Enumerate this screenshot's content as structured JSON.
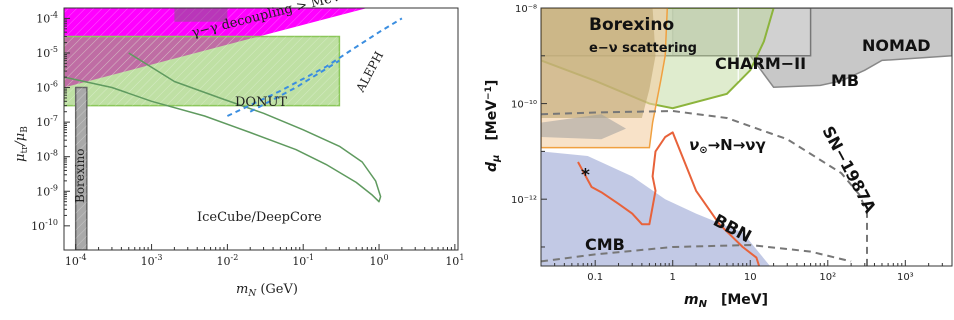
{
  "chart_data": [
    {
      "type": "area",
      "title": "",
      "xlabel": "m_N (GeV)",
      "ylabel": "μ_tr/μ_B",
      "x_scale": "log",
      "y_scale": "log",
      "xlim": [
        7e-05,
        11
      ],
      "ylim": [
        2e-11,
        0.0002
      ],
      "x_ticks": [
        "10^-4",
        "10^-3",
        "10^-2",
        "10^-1",
        "10^0",
        "10^1"
      ],
      "y_ticks": [
        "10^-10",
        "10^-9",
        "10^-8",
        "10^-7",
        "10^-6",
        "10^-5",
        "10^-4"
      ],
      "colors": {
        "decoupling": "#ff00ff",
        "donut": "#8bc75a",
        "borexino": "#a9a9a9",
        "icecube": "#5f9a5f",
        "aleph": "#3b8ee0"
      },
      "regions": [
        {
          "name": "γ–γ decoupling > MeV",
          "label_display": "γ−γ decoupling > MeV",
          "polygon": [
            [
              7e-05,
              0.0002
            ],
            [
              0.7,
              0.0002
            ],
            [
              7e-05,
              1e-06
            ]
          ]
        },
        {
          "name": "DONUT",
          "polygon": [
            [
              7e-05,
              3e-07
            ],
            [
              0.3,
              3e-07
            ],
            [
              0.3,
              3e-05
            ],
            [
              7e-05,
              3e-05
            ]
          ]
        },
        {
          "name": "Borexino",
          "polygon": [
            [
              0.0001,
              2e-11
            ],
            [
              0.00014,
              2e-11
            ],
            [
              0.00014,
              1e-06
            ],
            [
              0.0001,
              1e-06
            ]
          ]
        }
      ],
      "series": [
        {
          "name": "IceCube/DeepCore",
          "x": [
            7e-05,
            0.0003,
            0.001,
            0.005,
            0.02,
            0.08,
            0.2,
            0.5,
            0.8,
            1.0,
            1.05,
            0.9,
            0.6,
            0.3,
            0.1,
            0.03,
            0.008,
            0.002,
            0.0005
          ],
          "y": [
            2e-06,
            1e-06,
            4e-07,
            1.5e-07,
            5e-08,
            1.6e-08,
            6e-09,
            1.8e-09,
            8e-10,
            5e-10,
            7e-10,
            2e-09,
            7e-09,
            2e-08,
            6e-08,
            1.8e-07,
            5e-07,
            1.5e-06,
            1e-05
          ]
        },
        {
          "name": "ALEPH",
          "x": [
            0.01,
            0.05,
            0.2,
            0.5,
            1.0,
            2.0
          ],
          "y": [
            1.5e-07,
            8e-07,
            4e-06,
            1.5e-05,
            4e-05,
            0.0001
          ]
        },
        {
          "name": "blue-dashed-2",
          "x": [
            0.02,
            0.08,
            0.3
          ],
          "y": [
            2e-07,
            1e-06,
            6e-06
          ]
        }
      ]
    },
    {
      "type": "area",
      "title": "",
      "xlabel": "m_N",
      "xunit": "[MeV]",
      "ylabel": "d_μ",
      "yunit": "[MeV⁻¹]",
      "x_scale": "log",
      "y_scale": "log",
      "xlim": [
        0.02,
        4000
      ],
      "ylim": [
        4e-14,
        1e-08
      ],
      "x_ticks": [
        "0.1",
        "1",
        "10",
        "10²",
        "10³"
      ],
      "y_ticks": [
        "10⁻¹²",
        "10⁻¹⁰",
        "10⁻⁸"
      ],
      "colors": {
        "borexino": "#b8a06a",
        "charm": "#b9d593",
        "mb": "#d3d3d3",
        "nomad": "#c8c8c8",
        "sn": "#777777",
        "bbn": "#e8623a",
        "cmb": "#aeb7dc",
        "orange_region": "#f3cfa3"
      },
      "regions": [
        {
          "name": "NOMAD",
          "polygon": [
            [
              1,
              1e-08
            ],
            [
              4000,
              1e-08
            ],
            [
              4000,
              1e-09
            ],
            [
              500,
              8e-10
            ],
            [
              300,
              5e-10
            ],
            [
              150,
              3e-10
            ],
            [
              80,
              2.4e-10
            ],
            [
              20,
              2.2e-10
            ],
            [
              10,
              1e-09
            ],
            [
              1,
              1e-09
            ]
          ]
        },
        {
          "name": "MB",
          "polygon": [
            [
              0.02,
              1e-08
            ],
            [
              60,
              1e-08
            ],
            [
              60,
              1e-09
            ],
            [
              0.02,
              1e-09
            ]
          ]
        },
        {
          "name": "CHARM-II",
          "polygon": [
            [
              0.02,
              1e-08
            ],
            [
              20,
              1e-08
            ],
            [
              15,
              2e-09
            ],
            [
              10,
              5e-10
            ],
            [
              5,
              1.6e-10
            ],
            [
              1,
              8e-11
            ],
            [
              0.5,
              1e-10
            ],
            [
              0.1,
              3e-10
            ],
            [
              0.02,
              8e-10
            ]
          ]
        },
        {
          "name": "e−ν scattering",
          "polygon": [
            [
              0.02,
              1e-08
            ],
            [
              0.85,
              1e-08
            ],
            [
              0.8,
              1e-09
            ],
            [
              0.7,
              3e-10
            ],
            [
              0.55,
              4e-11
            ],
            [
              0.5,
              1.2e-11
            ],
            [
              0.02,
              1.2e-11
            ]
          ]
        },
        {
          "name": "Borexino",
          "polygon": [
            [
              0.02,
              1e-08
            ],
            [
              0.55,
              1e-08
            ],
            [
              0.6,
              1e-09
            ],
            [
              0.5,
              2e-10
            ],
            [
              0.4,
              5e-11
            ],
            [
              0.02,
              5e-11
            ]
          ]
        },
        {
          "name": "CMB",
          "polygon": [
            [
              0.02,
              4e-14
            ],
            [
              18,
              4e-14
            ],
            [
              8,
              2e-13
            ],
            [
              2,
              5e-13
            ],
            [
              0.8,
              1e-12
            ],
            [
              0.3,
              3e-12
            ],
            [
              0.08,
              8e-12
            ],
            [
              0.02,
              1e-11
            ]
          ]
        }
      ],
      "series": [
        {
          "name": "SN-1987A",
          "x": [
            0.02,
            0.1,
            1,
            5,
            30,
            150,
            260,
            320,
            320
          ],
          "y": [
            6e-11,
            6.5e-11,
            7e-11,
            5e-11,
            1.8e-11,
            3.5e-12,
            1.2e-12,
            5e-13,
            4e-14
          ]
        },
        {
          "name": "SN-1987A-lower",
          "x": [
            0.02,
            0.1,
            1,
            10,
            60,
            200
          ],
          "y": [
            5e-14,
            7e-14,
            1e-13,
            1.1e-13,
            8e-14,
            5e-14
          ]
        },
        {
          "name": "BBN",
          "x": [
            0.06,
            0.09,
            0.12,
            0.2,
            0.3,
            0.4,
            0.5,
            0.6,
            0.55,
            0.6,
            0.8,
            1.0,
            2.0,
            4.0,
            8.0,
            12.0,
            13.0
          ],
          "y": [
            6e-12,
            1.8e-12,
            1.4e-12,
            8e-13,
            5e-13,
            3e-13,
            3e-13,
            1.5e-12,
            3e-12,
            1e-11,
            2e-11,
            2.5e-11,
            1.5e-12,
            3e-13,
            1e-13,
            6e-14,
            4e-14
          ]
        }
      ],
      "point": {
        "x": 0.075,
        "y": 4e-12
      },
      "vertical_line_x": 7
    }
  ],
  "left": {
    "xlabel_main": "m",
    "xlabel_sub": "N",
    "xlabel_unit": " (GeV)",
    "ylabel_main": "μ",
    "ylabel_sub": "tr",
    "ylabel_slash": "/μ",
    "ylabel_sub2": "B",
    "labels": {
      "decoupling": "γ−γ decoupling > MeV",
      "donut": "DONUT",
      "aleph": "ALEPH",
      "borexino": "Borexino",
      "icecube": "IceCube/DeepCore"
    }
  },
  "right": {
    "xlabel_main": "m",
    "xlabel_sub": "N",
    "xlabel_unit": "[MeV]",
    "ylabel_main": "d",
    "ylabel_sub": "μ",
    "ylabel_unit": "[MeV",
    "ylabel_unit_sup": "−1",
    "ylabel_unit_close": "]",
    "labels": {
      "borexino": "Borexino",
      "escatter": "e−ν scattering",
      "charm": "CHARM−II",
      "nomad": "NOMAD",
      "mb": "MB",
      "sn": "SN−1987A",
      "process": "ν",
      "process_sub": "⊙",
      "process_rest": "→N→νγ",
      "bbn": "BBN",
      "cmb": "CMB",
      "star": "*"
    }
  }
}
